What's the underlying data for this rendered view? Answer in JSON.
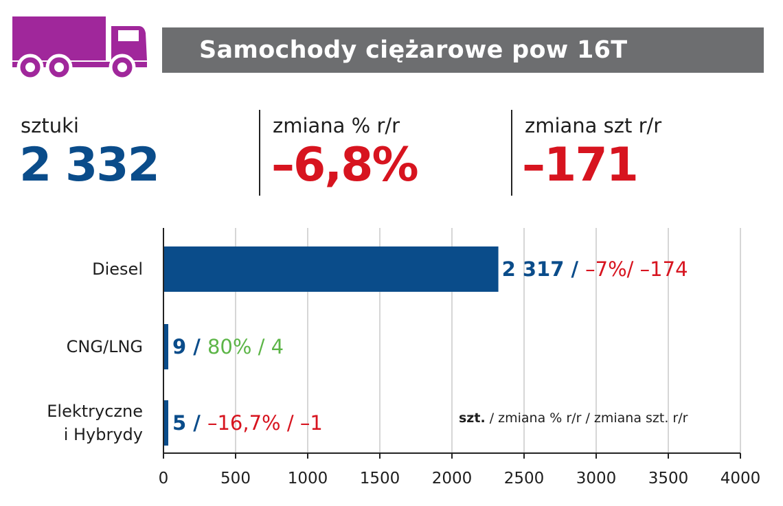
{
  "header": {
    "title": "Samochody ciężarowe pow 16T",
    "icon": "truck-icon",
    "icon_color": "#a0279b",
    "bar_color": "#6d6e70"
  },
  "stats": [
    {
      "label": "sztuki",
      "value": "2 332",
      "color": "#0a4c8a"
    },
    {
      "label": "zmiana % r/r",
      "value": "–6,8%",
      "color": "#d7141f"
    },
    {
      "label": "zmiana szt r/r",
      "value": "–171",
      "color": "#d7141f"
    }
  ],
  "chart_data": {
    "type": "bar",
    "orientation": "horizontal",
    "categories": [
      "Diesel",
      "CNG/LNG",
      "Elektryczne i Hybrydy"
    ],
    "category_lines": [
      [
        "Diesel"
      ],
      [
        "CNG/LNG"
      ],
      [
        "Elektryczne",
        "i Hybrydy"
      ]
    ],
    "values": [
      2317,
      9,
      5
    ],
    "bar_color": "#0a4c8a",
    "annotations": [
      {
        "count": "2 317",
        "sep": " / ",
        "change": "–7%/ –174",
        "change_color": "#d7141f"
      },
      {
        "count": "9",
        "sep": " / ",
        "change": "80% / 4",
        "change_color": "#5cb547"
      },
      {
        "count": "5",
        "sep": " / ",
        "change": "–16,7% / –1",
        "change_color": "#d7141f"
      }
    ],
    "xlim": [
      0,
      4000
    ],
    "xticks": [
      0,
      500,
      1000,
      1500,
      2000,
      2500,
      3000,
      3500,
      4000
    ],
    "grid": true,
    "legend_note": {
      "bold": "szt.",
      "rest": " / zmiana % r/r / zmiana szt. r/r"
    }
  }
}
